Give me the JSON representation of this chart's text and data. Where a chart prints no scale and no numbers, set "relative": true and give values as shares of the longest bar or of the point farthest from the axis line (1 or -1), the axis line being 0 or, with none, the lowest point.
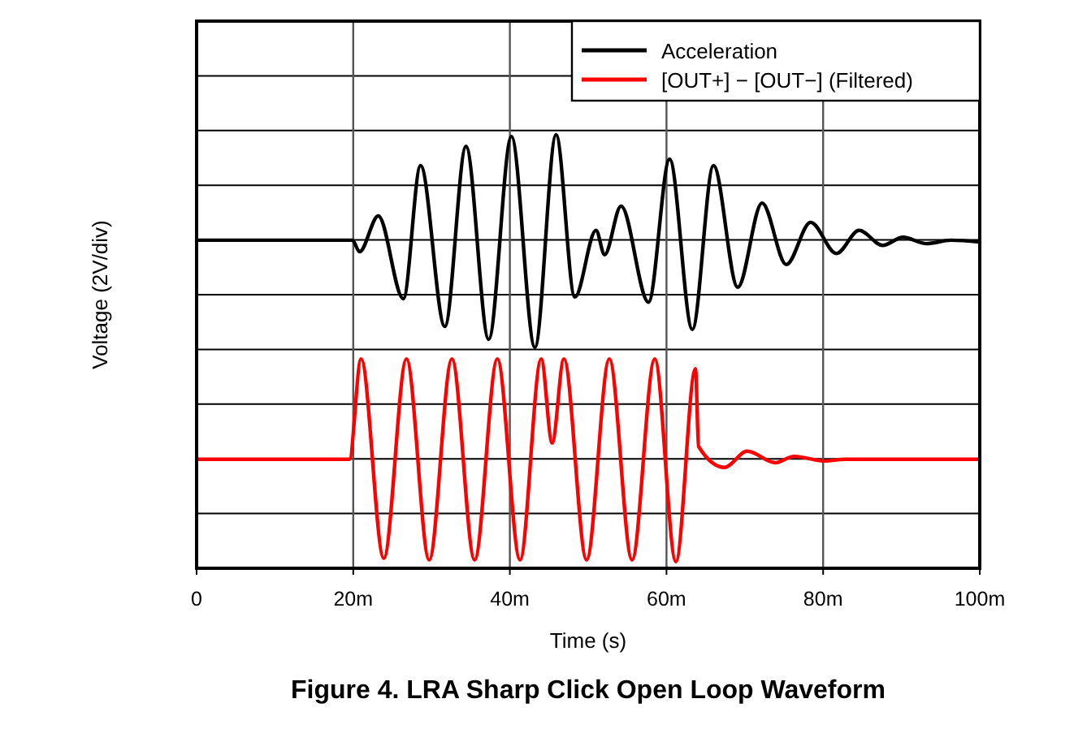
{
  "chart_data": {
    "type": "line",
    "title": "Figure 4. LRA Sharp Click Open Loop Waveform",
    "xlabel": "Time (s)",
    "ylabel": "Voltage (2V/div)",
    "relative": true,
    "grid": true,
    "legend": "top right",
    "xlim": [
      0,
      100
    ],
    "xticks": [
      0,
      {
        "value": 20,
        "label": "20m"
      },
      {
        "value": 40,
        "label": "40m"
      },
      {
        "value": 60,
        "label": "60m"
      },
      {
        "value": 80,
        "label": "80m"
      },
      {
        "value": 100,
        "label": "100m"
      }
    ],
    "series": [
      {
        "name": "Acceleration",
        "color": "#000000",
        "x": [
          0,
          19.9,
          20.8,
          23.2,
          26.4,
          28.6,
          31.7,
          34.4,
          37.3,
          40.2,
          43.2,
          45.9,
          48.3,
          51,
          52.1,
          54.2,
          57.7,
          60.4,
          63.3,
          66,
          69.1,
          72.2,
          75.3,
          78.4,
          81.7,
          84.6,
          87.6,
          90.2,
          93.2,
          96.3,
          100
        ],
        "values": [
          0.753,
          0.753,
          0.726,
          0.81,
          0.616,
          0.928,
          0.551,
          0.973,
          0.521,
          0.996,
          0.502,
          1,
          0.62,
          0.776,
          0.719,
          0.833,
          0.608,
          0.943,
          0.544,
          0.928,
          0.643,
          0.84,
          0.696,
          0.795,
          0.722,
          0.776,
          0.741,
          0.76,
          0.745,
          0.753,
          0.749
        ]
      },
      {
        "name": "[OUT+] − [OUT−] (Filtered)",
        "color": "#ff0000",
        "x": [
          0,
          19.5,
          21,
          23.9,
          26.8,
          29.7,
          32.6,
          35.5,
          38.4,
          41.3,
          44,
          45.4,
          46.9,
          49.8,
          52.7,
          55.6,
          58.5,
          61.2,
          63.7,
          64.1,
          67.4,
          70.3,
          73.9,
          76.3,
          80.1,
          82.8,
          100
        ],
        "values": [
          0.24,
          0.24,
          0.475,
          0.008,
          0.475,
          0.004,
          0.475,
          0.004,
          0.475,
          0.004,
          0.475,
          0.278,
          0.475,
          0.004,
          0.475,
          0.004,
          0.475,
          0,
          0.452,
          0.27,
          0.221,
          0.259,
          0.232,
          0.247,
          0.236,
          0.24,
          0.24
        ]
      }
    ]
  }
}
